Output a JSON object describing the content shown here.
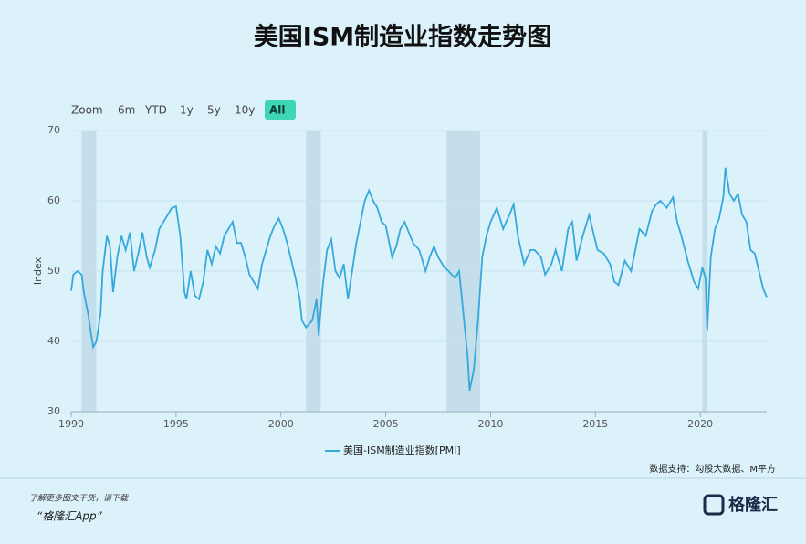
{
  "chart_data": {
    "type": "line",
    "title": "美国ISM制造业指数走势图",
    "range_buttons": [
      "Zoom",
      "6m",
      "YTD",
      "1y",
      "5y",
      "10y",
      "All"
    ],
    "selected_button": "All",
    "ylabel": "Index",
    "source": "数据支持：勾股大数据、M平方",
    "footer_note": "了解更多图文干货，请下载",
    "footer_app": "“格隆汇App”",
    "brand": "格隆汇",
    "xlim": [
      1990,
      2023.17
    ],
    "xticks": [
      1990,
      1995,
      2000,
      2005,
      2010,
      2015,
      2020
    ],
    "ylim": [
      30,
      70
    ],
    "yticks": [
      30,
      40,
      50,
      60,
      70
    ],
    "grid": true,
    "recessions": [
      [
        1990.5,
        1991.2
      ],
      [
        2001.2,
        2001.9
      ],
      [
        2007.9,
        2009.5
      ],
      [
        2020.1,
        2020.35
      ]
    ],
    "x": [
      1990.0,
      1990.1,
      1990.3,
      1990.5,
      1990.6,
      1990.8,
      1990.95,
      1991.05,
      1991.2,
      1991.4,
      1991.5,
      1991.7,
      1991.85,
      1992.0,
      1992.2,
      1992.4,
      1992.6,
      1992.8,
      1993.0,
      1993.2,
      1993.4,
      1993.6,
      1993.75,
      1994.0,
      1994.2,
      1994.5,
      1994.8,
      1995.0,
      1995.2,
      1995.4,
      1995.5,
      1995.7,
      1995.9,
      1996.1,
      1996.3,
      1996.5,
      1996.7,
      1996.9,
      1997.1,
      1997.3,
      1997.5,
      1997.7,
      1997.9,
      1998.1,
      1998.3,
      1998.5,
      1998.7,
      1998.9,
      1999.1,
      1999.3,
      1999.5,
      1999.7,
      1999.9,
      2000.1,
      2000.3,
      2000.5,
      2000.7,
      2000.9,
      2001.0,
      2001.2,
      2001.5,
      2001.7,
      2001.8,
      2002.0,
      2002.2,
      2002.4,
      2002.6,
      2002.8,
      2003.0,
      2003.2,
      2003.4,
      2003.6,
      2003.8,
      2004.0,
      2004.2,
      2004.4,
      2004.6,
      2004.8,
      2005.0,
      2005.3,
      2005.5,
      2005.7,
      2005.9,
      2006.1,
      2006.3,
      2006.6,
      2006.9,
      2007.1,
      2007.3,
      2007.5,
      2007.8,
      2008.0,
      2008.3,
      2008.5,
      2008.7,
      2008.9,
      2009.0,
      2009.2,
      2009.4,
      2009.6,
      2009.8,
      2010.0,
      2010.3,
      2010.6,
      2010.9,
      2011.1,
      2011.3,
      2011.6,
      2011.9,
      2012.1,
      2012.4,
      2012.6,
      2012.9,
      2013.1,
      2013.4,
      2013.7,
      2013.9,
      2014.1,
      2014.4,
      2014.7,
      2014.9,
      2015.1,
      2015.4,
      2015.7,
      2015.9,
      2016.1,
      2016.4,
      2016.7,
      2016.9,
      2017.1,
      2017.4,
      2017.7,
      2017.9,
      2018.1,
      2018.4,
      2018.7,
      2018.9,
      2019.1,
      2019.4,
      2019.7,
      2019.9,
      2020.1,
      2020.25,
      2020.33,
      2020.5,
      2020.7,
      2020.9,
      2021.1,
      2021.2,
      2021.4,
      2021.6,
      2021.8,
      2022.0,
      2022.2,
      2022.4,
      2022.6,
      2022.8,
      2023.0,
      2023.17
    ],
    "series": [
      {
        "name": "美国-ISM制造业指数[PMI]",
        "color": "#35a8dc",
        "values": [
          47.2,
          49.5,
          50,
          49.5,
          47,
          44,
          41,
          39.2,
          40,
          44,
          50,
          55,
          53.5,
          47,
          52,
          55,
          53,
          55.5,
          50,
          52.5,
          55.5,
          52,
          50.5,
          53,
          56,
          57.5,
          59,
          59.2,
          55,
          47,
          46,
          50,
          46.5,
          46,
          48.5,
          53,
          51,
          53.5,
          52.5,
          55,
          56,
          57,
          54,
          54,
          52,
          49.5,
          48.5,
          47.5,
          51,
          53,
          55,
          56.5,
          57.5,
          56,
          54,
          51.5,
          49,
          46,
          43,
          42,
          43,
          46,
          40.8,
          48,
          53,
          54.5,
          50,
          49,
          51,
          46,
          50,
          54,
          57,
          60,
          61.5,
          60,
          59,
          57,
          56.5,
          52,
          53.5,
          56,
          57,
          55.5,
          54,
          53,
          50,
          52,
          53.5,
          52,
          50.5,
          50,
          49,
          50,
          44,
          38,
          33,
          36,
          43,
          52,
          55,
          57,
          59,
          56,
          58,
          59.5,
          55,
          51,
          53,
          53,
          52,
          49.5,
          51,
          53,
          50,
          56,
          57,
          51.5,
          55,
          58,
          55.5,
          53,
          52.5,
          51,
          48.5,
          48,
          51.5,
          50,
          53,
          56,
          55,
          58.5,
          59.5,
          60,
          59,
          60.5,
          57,
          55,
          51.5,
          48.5,
          47.5,
          50.5,
          49,
          41.5,
          52,
          56,
          57.5,
          60.5,
          64.7,
          61,
          60,
          61,
          58,
          57,
          53,
          52.5,
          50,
          47.5,
          46.3
        ]
      }
    ]
  }
}
